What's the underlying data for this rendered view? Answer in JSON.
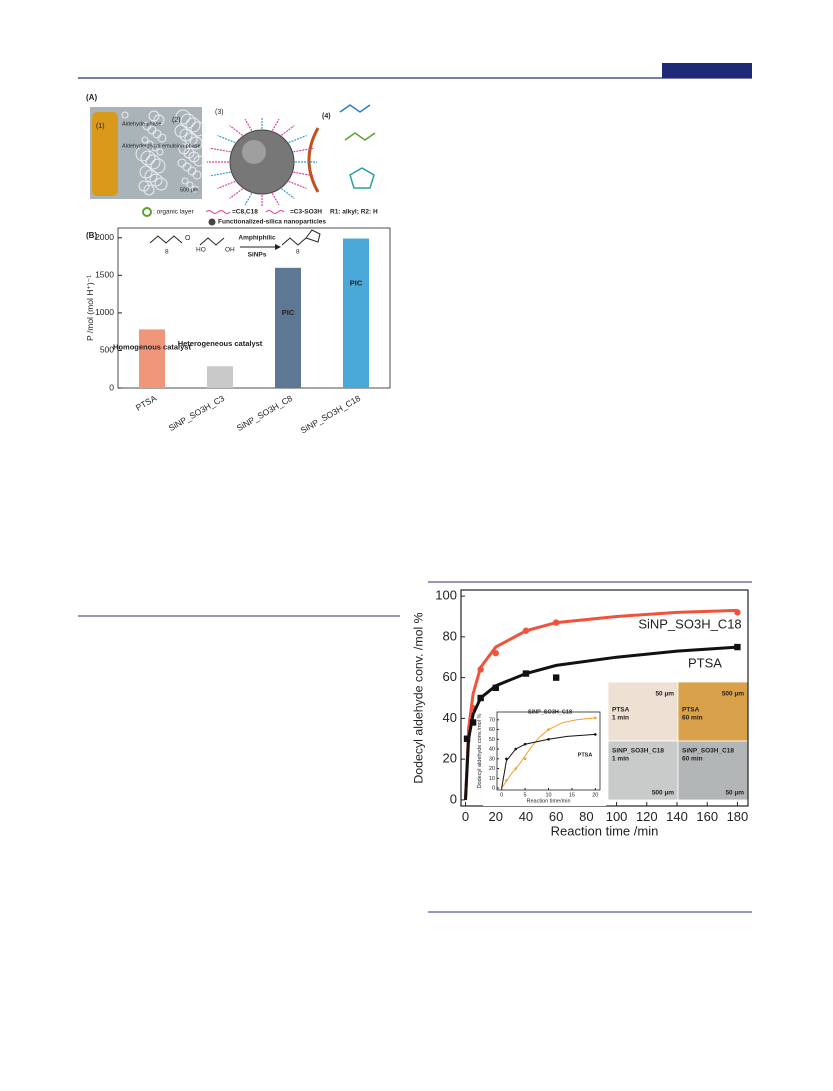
{
  "figure_a": {
    "panel": "(A)",
    "p1": "(1)",
    "p2": "(2)",
    "p3": "(3)",
    "p4": "(4)",
    "aldehyde_phase": "Aldehyde phase",
    "emulsion_phase": "Aldehyde/glycol emulsion phase",
    "scale": "500 µm",
    "organic_layer": ": organic layer",
    "long_chain": "=C8,C18",
    "acid_chain": "=C3-SO3H",
    "r_groups": "R1: alkyl; R2: H",
    "particles": "Functionalized-silica nanoparticles"
  },
  "scheme": {
    "n1": "8",
    "o1": "O",
    "ho": "HO",
    "oh": "OH",
    "arrow_top": "Amphiphilic",
    "arrow_bottom": "SiNPs",
    "n2": "8"
  },
  "micrographs": [
    {
      "name": "PTSA",
      "time": "1 min",
      "scale": "50 µm"
    },
    {
      "name": "PTSA",
      "time": "60 min",
      "scale": "500 µm"
    },
    {
      "name": "SiNP_SO3H_C18",
      "time": "1 min",
      "scale": "500 µm"
    },
    {
      "name": "SiNP_SO3H_C18",
      "time": "60 min",
      "scale": "50 µm"
    }
  ],
  "chart_data": [
    {
      "type": "bar",
      "panel": "(B)",
      "ylabel": "P /mol (mol H⁺)⁻¹",
      "categories": [
        "PTSA",
        "SiNP_SO3H_C3",
        "SiNP_SO3H_C8",
        "SiNP_SO3H_C18"
      ],
      "values": [
        780,
        290,
        1600,
        1990
      ],
      "colors": [
        "#f0977b",
        "#c9c9c9",
        "#5e7794",
        "#4ba9d9"
      ],
      "annotations": [
        "Homogenous catalyst",
        "Heterogeneous catalyst",
        "PIC",
        "PIC"
      ],
      "ylim": [
        0,
        2130
      ],
      "yticks": [
        0,
        500,
        1000,
        1500,
        2000
      ]
    },
    {
      "type": "line",
      "xlabel": "Reaction time /min",
      "ylabel": "Dodecyl aldehyde conv. /mol %",
      "xlim": [
        -3,
        187
      ],
      "xticks": [
        0,
        20,
        40,
        60,
        80,
        100,
        120,
        140,
        160,
        180
      ],
      "ylim": [
        -3,
        103
      ],
      "yticks": [
        0,
        20,
        40,
        60,
        80,
        100
      ],
      "series": [
        {
          "name": "SiNP_SO3H_C18",
          "color": "#f0533a",
          "marker": "circle",
          "x": [
            5,
            10,
            20,
            40,
            60,
            180
          ],
          "values": [
            45,
            64,
            72,
            83,
            87,
            92
          ],
          "fit_x": [
            0,
            2,
            5,
            10,
            20,
            40,
            60,
            100,
            140,
            180
          ],
          "fit_values": [
            0,
            35,
            52,
            65,
            75,
            83,
            87,
            90,
            92,
            93
          ]
        },
        {
          "name": "PTSA",
          "color": "#111111",
          "marker": "square",
          "x": [
            1,
            5,
            10,
            20,
            40,
            60,
            180
          ],
          "values": [
            30,
            38,
            50,
            55,
            62,
            60,
            75
          ],
          "fit_x": [
            0,
            2,
            5,
            10,
            20,
            40,
            60,
            100,
            140,
            180
          ],
          "fit_values": [
            0,
            30,
            42,
            50,
            56,
            62,
            66,
            70,
            73,
            75
          ]
        }
      ]
    },
    {
      "type": "line",
      "xlabel": "Reaction time/min",
      "ylabel": "Dodecyl aldehyde conv./mol %",
      "xlim": [
        -1,
        21
      ],
      "xticks": [
        0,
        5,
        10,
        15,
        20
      ],
      "ylim": [
        -2,
        78
      ],
      "yticks": [
        0,
        10,
        20,
        30,
        40,
        50,
        60,
        70
      ],
      "series": [
        {
          "name": "SiNP_SO3H_C18",
          "color": "#f0a030",
          "marker": "circle",
          "x": [
            1,
            3,
            5,
            10,
            20
          ],
          "values": [
            8,
            20,
            30,
            60,
            72
          ],
          "fit_x": [
            0,
            2,
            4,
            6,
            8,
            10,
            13,
            16,
            20
          ],
          "fit_values": [
            0,
            14,
            26,
            40,
            52,
            60,
            67,
            70,
            72
          ]
        },
        {
          "name": "PTSA",
          "color": "#111111",
          "marker": "circle",
          "x": [
            1,
            3,
            5,
            10,
            20
          ],
          "values": [
            30,
            40,
            45,
            50,
            55
          ],
          "fit_x": [
            0,
            1,
            3,
            5,
            8,
            10,
            14,
            20
          ],
          "fit_values": [
            0,
            28,
            40,
            45,
            48,
            50,
            53,
            55
          ]
        }
      ]
    }
  ]
}
